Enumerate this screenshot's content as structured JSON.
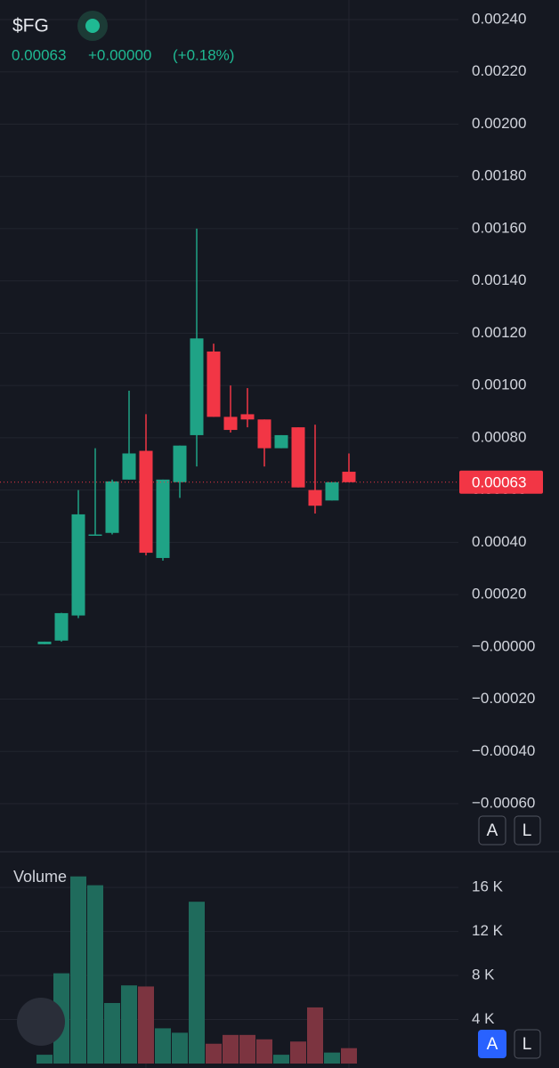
{
  "chart_data": [
    {
      "type": "candlestick",
      "title": "$FG",
      "annotations": [
        "0.00063",
        "+0.00000",
        "(+0.18%)"
      ],
      "open": [
        1e-05,
        2.4e-05,
        0.00012,
        0.00043,
        0.000436,
        0.00064,
        0.00075,
        0.00034,
        0.00063,
        0.00081,
        0.00113,
        0.00088,
        0.00089,
        0.00087,
        0.00076,
        0.00084,
        0.0006,
        0.00056,
        0.00067
      ],
      "high": [
        2e-05,
        0.00013,
        0.0006,
        0.00076,
        0.00064,
        0.00098,
        0.00089,
        0.00064,
        0.00077,
        0.0016,
        0.00116,
        0.001,
        0.00099,
        0.00087,
        0.00081,
        0.00084,
        0.00085,
        0.00063,
        0.00074
      ],
      "low": [
        1e-05,
        2e-05,
        0.00011,
        0.00043,
        0.00043,
        0.00064,
        0.00035,
        0.00033,
        0.00057,
        0.00069,
        0.00088,
        0.00082,
        0.00084,
        0.00069,
        0.00076,
        0.00061,
        0.00051,
        0.00056,
        0.00063
      ],
      "close": [
        2e-05,
        0.000129,
        0.000507,
        0.00043,
        0.000633,
        0.00074,
        0.00036,
        0.00064,
        0.00077,
        0.00118,
        0.00088,
        0.00083,
        0.00087,
        0.00076,
        0.00081,
        0.00061,
        0.00054,
        0.00063,
        0.00063
      ],
      "up_color": "#1fa386",
      "down_color": "#f23645",
      "ylim": [
        -0.0006,
        0.0024
      ],
      "yticks": [
        {
          "value": 0.0024,
          "label": "0.00240"
        },
        {
          "value": 0.0022,
          "label": "0.00220"
        },
        {
          "value": 0.002,
          "label": "0.00200"
        },
        {
          "value": 0.0018,
          "label": "0.00180"
        },
        {
          "value": 0.0016,
          "label": "0.00160"
        },
        {
          "value": 0.0014,
          "label": "0.00140"
        },
        {
          "value": 0.0012,
          "label": "0.00120"
        },
        {
          "value": 0.001,
          "label": "0.00100"
        },
        {
          "value": 0.0008,
          "label": "0.00080"
        },
        {
          "value": 0.0006,
          "label": "0.00060"
        },
        {
          "value": 0.0004,
          "label": "0.00040"
        },
        {
          "value": 0.0002,
          "label": "0.00020"
        },
        {
          "value": 0,
          "label": "−0.00000"
        },
        {
          "value": -0.0002,
          "label": "−0.00020"
        },
        {
          "value": -0.0004,
          "label": "−0.00040"
        },
        {
          "value": -0.0006,
          "label": "−0.00060"
        }
      ],
      "last_price": {
        "value": 0.00063,
        "label": "0.00063"
      },
      "grid": true
    },
    {
      "type": "bar",
      "title": "Volume",
      "values": [
        800,
        8200,
        17000,
        16200,
        5500,
        7100,
        7000,
        3200,
        2800,
        14700,
        1800,
        2600,
        2600,
        2200,
        800,
        2000,
        5100,
        1000,
        1400
      ],
      "colors": [
        "#1f6b5c",
        "#1f6b5c",
        "#1f6b5c",
        "#1f6b5c",
        "#1f6b5c",
        "#1f6b5c",
        "#7c3440",
        "#1f6b5c",
        "#1f6b5c",
        "#1f6b5c",
        "#7c3440",
        "#7c3440",
        "#7c3440",
        "#7c3440",
        "#1f6b5c",
        "#7c3440",
        "#7c3440",
        "#1f6b5c",
        "#7c3440"
      ],
      "ylim": [
        0,
        19000
      ],
      "yticks": [
        {
          "value": 16000,
          "label": "16 K"
        },
        {
          "value": 12000,
          "label": "12 K"
        },
        {
          "value": 8000,
          "label": "8 K"
        },
        {
          "value": 4000,
          "label": "4 K"
        }
      ],
      "grid": true
    }
  ],
  "controls": {
    "price_axis": [
      "A",
      "L"
    ],
    "volume_axis": [
      "A",
      "L"
    ]
  }
}
